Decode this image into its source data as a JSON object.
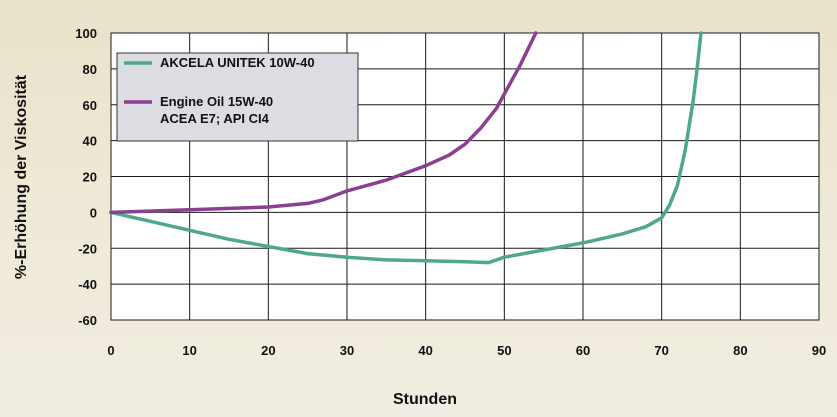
{
  "chart_data": {
    "type": "line",
    "title": "",
    "xlabel": "Stunden",
    "ylabel": "%-Erhöhung der Viskosität",
    "xlim": [
      0,
      90
    ],
    "ylim": [
      -60,
      100
    ],
    "xticks": [
      0,
      10,
      20,
      30,
      40,
      50,
      60,
      70,
      80,
      90
    ],
    "yticks": [
      100,
      80,
      60,
      40,
      20,
      0,
      -20,
      -40,
      -60
    ],
    "grid": true,
    "legend_position": "top-left",
    "series": [
      {
        "name": "AKCELA UNITEK 10W-40",
        "name_lines": [
          "AKCELA UNITEK 10W-40"
        ],
        "color": "#4fa78c",
        "x": [
          0,
          5,
          10,
          15,
          20,
          25,
          30,
          35,
          40,
          45,
          48,
          50,
          55,
          60,
          65,
          68,
          70,
          71,
          72,
          73,
          74,
          74.5,
          75
        ],
        "y": [
          0,
          -5,
          -10,
          -15,
          -19,
          -23,
          -25,
          -26.5,
          -27,
          -27.5,
          -28,
          -25,
          -21,
          -17,
          -12,
          -8,
          -3,
          4,
          15,
          35,
          62,
          80,
          100
        ]
      },
      {
        "name": "Engine Oil 15W-40 ACEA E7; API CI4",
        "name_lines": [
          "Engine Oil 15W-40",
          "ACEA E7; API CI4"
        ],
        "color": "#8b3f8f",
        "x": [
          0,
          10,
          20,
          25,
          27,
          30,
          35,
          40,
          43,
          45,
          47,
          49,
          50,
          52,
          54
        ],
        "y": [
          0,
          1.5,
          3,
          5,
          7,
          12,
          18,
          26,
          32,
          38,
          47,
          58,
          66,
          82,
          100
        ]
      }
    ]
  }
}
